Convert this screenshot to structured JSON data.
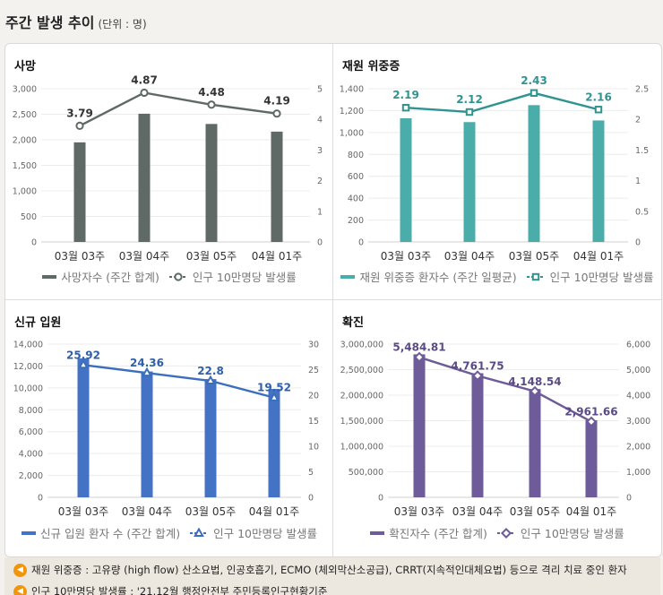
{
  "header": {
    "title": "주간 발생 추이",
    "unit": "(단위 : 명)"
  },
  "chart_data": [
    {
      "type": "bar+line",
      "title": "사망",
      "categories": [
        "03월 03주",
        "03월 04주",
        "03월 05주",
        "04월 01주"
      ],
      "bar_series": {
        "name": "사망자수 (주간 합계)",
        "values": [
          1950,
          2510,
          2310,
          2160
        ],
        "color": "#5f6a66"
      },
      "line_series": {
        "name": "인구 10만명당 발생률",
        "values": [
          3.79,
          4.87,
          4.48,
          4.19
        ],
        "labels": [
          "3.79",
          "4.87",
          "4.48",
          "4.19"
        ],
        "color": "#5f6a66",
        "marker": "circle"
      },
      "y_left": {
        "min": 0,
        "max": 3000,
        "ticks": [
          "0",
          "500",
          "1,000",
          "1,500",
          "2,000",
          "2,500",
          "3,000"
        ]
      },
      "y_right": {
        "min": 0,
        "max": 5,
        "ticks": [
          "0",
          "1",
          "2",
          "3",
          "4",
          "5"
        ]
      },
      "label_color": "#333333"
    },
    {
      "type": "bar+line",
      "title": "재원 위중증",
      "categories": [
        "03월 03주",
        "03월 04주",
        "03월 05주",
        "04월 01주"
      ],
      "bar_series": {
        "name": "재원 위중증 환자수 (주간 일평균)",
        "values": [
          1130,
          1095,
          1250,
          1110
        ],
        "color": "#4bada9"
      },
      "line_series": {
        "name": "인구 10만명당 발생률",
        "values": [
          2.19,
          2.12,
          2.43,
          2.16
        ],
        "labels": [
          "2.19",
          "2.12",
          "2.43",
          "2.16"
        ],
        "color": "#2f9490",
        "marker": "square"
      },
      "y_left": {
        "min": 0,
        "max": 1400,
        "ticks": [
          "0",
          "200",
          "400",
          "600",
          "800",
          "1,000",
          "1,200",
          "1,400"
        ]
      },
      "y_right": {
        "min": 0,
        "max": 2.5,
        "ticks": [
          "0",
          "0.5",
          "1",
          "1.5",
          "2",
          "2.5"
        ]
      },
      "label_color": "#2f9490"
    },
    {
      "type": "bar+line",
      "title": "신규 입원",
      "categories": [
        "03월 03주",
        "03월 04주",
        "03월 05주",
        "04월 01주"
      ],
      "bar_series": {
        "name": "신규 입원 환자 수 (주간 합계)",
        "values": [
          12700,
          11500,
          10800,
          9900
        ],
        "color": "#4472c4"
      },
      "line_series": {
        "name": "인구 10만명당 발생률",
        "values": [
          25.92,
          24.36,
          22.8,
          19.52
        ],
        "labels": [
          "25.92",
          "24.36",
          "22.8",
          "19.52"
        ],
        "color": "#3b6fbd",
        "marker": "triangle"
      },
      "y_left": {
        "min": 0,
        "max": 14000,
        "ticks": [
          "0",
          "2,000",
          "4,000",
          "6,000",
          "8,000",
          "10,000",
          "12,000",
          "14,000"
        ]
      },
      "y_right": {
        "min": 0,
        "max": 30,
        "ticks": [
          "0",
          "5",
          "10",
          "15",
          "20",
          "25",
          "30"
        ]
      },
      "label_color": "#2f5fa8"
    },
    {
      "type": "bar+line",
      "title": "확진",
      "categories": [
        "03월 03주",
        "03월 04주",
        "03월 05주",
        "04월 01주"
      ],
      "bar_series": {
        "name": "확진자수 (주간 합계)",
        "values": [
          2800000,
          2430000,
          2120000,
          1510000
        ],
        "color": "#6e5b9a"
      },
      "line_series": {
        "name": "인구 10만명당 발생률",
        "values": [
          5484.81,
          4761.75,
          4148.54,
          2961.66
        ],
        "labels": [
          "5,484.81",
          "4,761.75",
          "4,148.54",
          "2,961.66"
        ],
        "color": "#6e5b9a",
        "marker": "diamond"
      },
      "y_left": {
        "min": 0,
        "max": 3000000,
        "ticks": [
          "0",
          "500,000",
          "1,000,000",
          "1,500,000",
          "2,000,000",
          "2,500,000",
          "3,000,000"
        ]
      },
      "y_right": {
        "min": 0,
        "max": 6000,
        "ticks": [
          "0",
          "1,000",
          "2,000",
          "3,000",
          "4,000",
          "5,000",
          "6,000"
        ]
      },
      "label_color": "#5a4a85"
    }
  ],
  "notes": [
    {
      "icon": "speaker-icon",
      "text": "재원 위중증 : 고유량 (high flow) 산소요법, 인공호흡기, ECMO (체외막산소공급), CRRT(지속적인대체요법) 등으로 격리 치료 중인 환자"
    },
    {
      "icon": "speaker-icon",
      "text": "인구 10만명당 발생률 : '21.12월 행정안전부 주민등록인구현황기준"
    }
  ]
}
